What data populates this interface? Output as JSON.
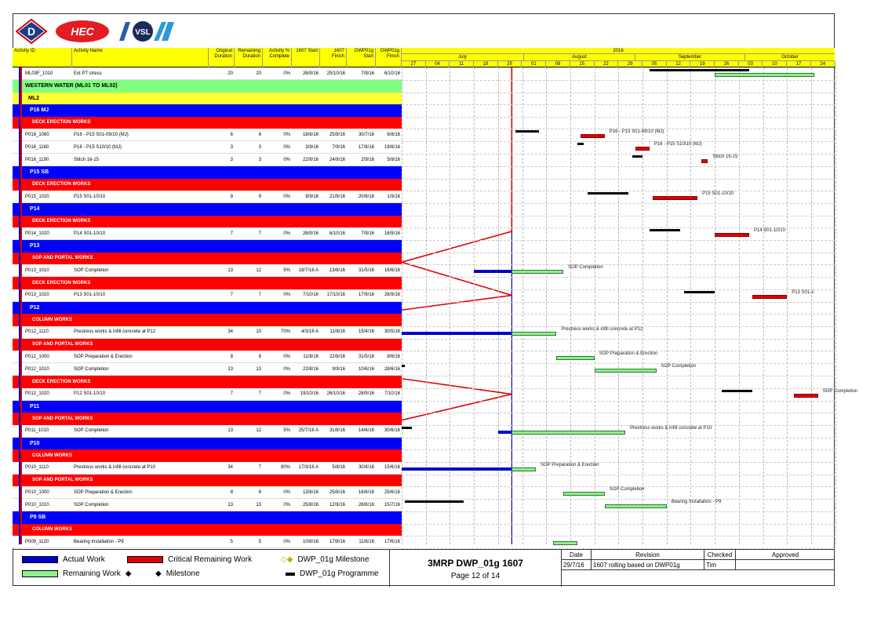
{
  "colors": {
    "actual": "#0000cc",
    "critical": "#e00000",
    "remaining": "#90ee90",
    "header": "#ffff00"
  },
  "logos": [
    "D",
    "HEC",
    "VSL"
  ],
  "columns": [
    "Activity ID",
    "Activity Name",
    "Original Duration",
    "Remaining Duration",
    "Activity % Complete",
    "1607 Start",
    "1607 Finish",
    "DWP01g Start",
    "DWP01g Finish"
  ],
  "timescale": {
    "year": "2016",
    "months": [
      "July",
      "August",
      "September",
      "October"
    ],
    "days": [
      "27",
      "04",
      "11",
      "18",
      "25",
      "01",
      "08",
      "15",
      "22",
      "29",
      "05",
      "12",
      "19",
      "26",
      "03",
      "10",
      "17",
      "24"
    ]
  },
  "rows": [
    {
      "type": "act",
      "id": "ML03F_1010",
      "name": "Ext PT stress",
      "od": "20",
      "rd": "20",
      "pc": "0%",
      "s": "26/9/16",
      "f": "25/10/16",
      "ds": "7/9/16",
      "df": "6/10/16"
    },
    {
      "type": "green",
      "label": "WESTERN WATER (ML01 TO ML02)"
    },
    {
      "type": "yellow",
      "label": "ML2"
    },
    {
      "type": "blue",
      "label": "P16 MJ"
    },
    {
      "type": "red",
      "label": "DECK ERECTION WORKS"
    },
    {
      "type": "act",
      "id": "P016_1080",
      "name": "P16 - P15 S01-09/10 (MJ)",
      "od": "6",
      "rd": "6",
      "pc": "0%",
      "s": "18/8/16",
      "f": "25/8/16",
      "ds": "30/7/16",
      "df": "6/8/16"
    },
    {
      "type": "act",
      "id": "P016_1160",
      "name": "P16 - P15 S10/10 (MJ)",
      "od": "3",
      "rd": "3",
      "pc": "0%",
      "s": "3/9/16",
      "f": "7/9/16",
      "ds": "17/8/16",
      "df": "19/8/16"
    },
    {
      "type": "act",
      "id": "P016_1190",
      "name": "Stitch 16-15",
      "od": "3",
      "rd": "3",
      "pc": "0%",
      "s": "22/9/16",
      "f": "24/9/16",
      "ds": "2/9/16",
      "df": "5/9/16"
    },
    {
      "type": "blue",
      "label": "P15 SB"
    },
    {
      "type": "red",
      "label": "DECK ERECTION WORKS"
    },
    {
      "type": "act",
      "id": "P015_1020",
      "name": "P15 S01-10/10",
      "od": "9",
      "rd": "9",
      "pc": "0%",
      "s": "8/9/16",
      "f": "21/9/16",
      "ds": "20/8/16",
      "df": "1/9/16"
    },
    {
      "type": "blue",
      "label": "P14"
    },
    {
      "type": "red",
      "label": "DECK ERECTION WORKS"
    },
    {
      "type": "act",
      "id": "P014_1020",
      "name": "P14 S01-10/10",
      "od": "7",
      "rd": "7",
      "pc": "0%",
      "s": "26/9/16",
      "f": "6/10/16",
      "ds": "7/9/16",
      "df": "16/9/16"
    },
    {
      "type": "blue",
      "label": "P13"
    },
    {
      "type": "red",
      "label": "SOP AND PORTAL WORKS"
    },
    {
      "type": "act",
      "id": "P013_1010",
      "name": "SOP Completion",
      "od": "13",
      "rd": "12",
      "pc": "5%",
      "s": "18/7/16 A",
      "f": "13/8/16",
      "ds": "31/5/16",
      "df": "16/6/16"
    },
    {
      "type": "red",
      "label": "DECK ERECTION WORKS"
    },
    {
      "type": "act",
      "id": "P013_1020",
      "name": "P13 S01-10/10",
      "od": "7",
      "rd": "7",
      "pc": "0%",
      "s": "7/10/16",
      "f": "17/10/16",
      "ds": "17/9/16",
      "df": "26/9/16"
    },
    {
      "type": "blue",
      "label": "P12"
    },
    {
      "type": "red",
      "label": "COLUMN WORKS"
    },
    {
      "type": "act",
      "id": "P012_1110",
      "name": "Prestress works & infill concrete at P12",
      "od": "34",
      "rd": "10",
      "pc": "70%",
      "s": "4/3/16 A",
      "f": "11/8/16",
      "ds": "15/4/16",
      "df": "30/5/16"
    },
    {
      "type": "red",
      "label": "SOP AND PORTAL WORKS"
    },
    {
      "type": "act",
      "id": "P012_1000",
      "name": "SOP Preparation & Erection",
      "od": "8",
      "rd": "8",
      "pc": "0%",
      "s": "11/8/16",
      "f": "22/8/16",
      "ds": "31/5/16",
      "df": "8/6/16"
    },
    {
      "type": "act",
      "id": "P012_1010",
      "name": "SOP Completion",
      "od": "13",
      "rd": "13",
      "pc": "0%",
      "s": "22/8/16",
      "f": "9/9/16",
      "ds": "10/6/16",
      "df": "28/6/16"
    },
    {
      "type": "red",
      "label": "DECK ERECTION WORKS"
    },
    {
      "type": "act",
      "id": "P012_1020",
      "name": "P12 S01-10/10",
      "od": "7",
      "rd": "7",
      "pc": "0%",
      "s": "19/10/16",
      "f": "26/10/16",
      "ds": "28/9/16",
      "df": "7/10/16"
    },
    {
      "type": "blue",
      "label": "P11"
    },
    {
      "type": "red",
      "label": "SOP AND PORTAL WORKS"
    },
    {
      "type": "act",
      "id": "P011_1010",
      "name": "SOP Completion",
      "od": "13",
      "rd": "12",
      "pc": "5%",
      "s": "25/7/16 A",
      "f": "31/8/16",
      "ds": "14/6/16",
      "df": "30/6/16"
    },
    {
      "type": "blue",
      "label": "P10"
    },
    {
      "type": "red",
      "label": "COLUMN WORKS"
    },
    {
      "type": "act",
      "id": "P010_1110",
      "name": "Prestress works & infill concrete at P10",
      "od": "34",
      "rd": "7",
      "pc": "80%",
      "s": "17/3/16 A",
      "f": "5/8/16",
      "ds": "30/4/16",
      "df": "15/6/16"
    },
    {
      "type": "red",
      "label": "SOP AND PORTAL WORKS"
    },
    {
      "type": "act",
      "id": "P010_1000",
      "name": "SOP Preparation & Erection",
      "od": "8",
      "rd": "8",
      "pc": "0%",
      "s": "13/8/16",
      "f": "25/8/16",
      "ds": "16/6/16",
      "df": "25/6/16"
    },
    {
      "type": "act",
      "id": "P010_1010",
      "name": "SOP Completion",
      "od": "13",
      "rd": "13",
      "pc": "0%",
      "s": "25/8/16",
      "f": "12/9/16",
      "ds": "28/6/16",
      "df": "15/7/16"
    },
    {
      "type": "blue",
      "label": "P9 SB"
    },
    {
      "type": "red",
      "label": "COLUMN WORKS"
    },
    {
      "type": "act",
      "id": "P009_1120",
      "name": "Bearing Installation - P9",
      "od": "5",
      "rd": "5",
      "pc": "0%",
      "s": "10/8/16",
      "f": "17/8/16",
      "ds": "11/6/16",
      "df": "17/6/16"
    }
  ],
  "bar_labels": [
    "P16 - P15 S01-09/10 (MJ)",
    "P16 - P15 S10/10 (MJ)",
    "Stitch 16-15",
    "P15 S01-10/10",
    "P14 S01-10/10",
    "SOP Completion",
    "P13 S01-1",
    "Prestress works & infill concrete at P12",
    "SOP Preparation & Erection",
    "SOP Completion",
    "SOP Completion",
    "Prestress works & infill concrete at P10",
    "SOP Preparation & Erection",
    "SOP Completion",
    "Bearing Installation - P9"
  ],
  "legend": {
    "actual": "Actual Work",
    "critical": "Critical Remaining Work",
    "remaining": "Remaining Work",
    "milestone": "Milestone",
    "dwp_milestone": "DWP_01g Milestone",
    "dwp_programme": "DWP_01g Programme"
  },
  "title_block": {
    "title": "3MRP DWP_01g 1607",
    "page": "Page 12 of 14"
  },
  "revision": {
    "headers": [
      "Date",
      "Revision",
      "Checked",
      "Approved"
    ],
    "date": "29/7/16",
    "text": "1607 rolling based on DWP01g",
    "checked": "Tim",
    "approved": ""
  }
}
